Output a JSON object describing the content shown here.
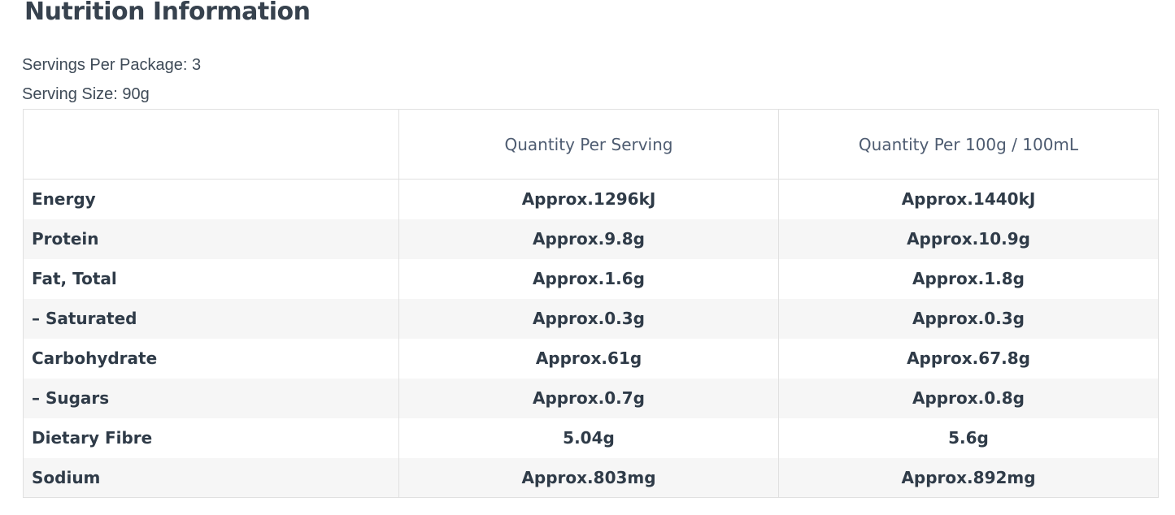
{
  "page": {
    "title": "Nutrition Information",
    "servings_per_package": "Servings Per Package: 3",
    "serving_size": "Serving Size: 90g"
  },
  "table": {
    "columns": [
      "",
      "Quantity Per Serving",
      "Quantity Per 100g / 100mL"
    ],
    "rows": [
      {
        "label": "Energy",
        "per_serving": "Approx.1296kJ",
        "per_100g": "Approx.1440kJ"
      },
      {
        "label": "Protein",
        "per_serving": "Approx.9.8g",
        "per_100g": "Approx.10.9g"
      },
      {
        "label": "Fat, Total",
        "per_serving": "Approx.1.6g",
        "per_100g": "Approx.1.8g"
      },
      {
        "label": "– Saturated",
        "per_serving": "Approx.0.3g",
        "per_100g": "Approx.0.3g"
      },
      {
        "label": "Carbohydrate",
        "per_serving": "Approx.61g",
        "per_100g": "Approx.67.8g"
      },
      {
        "label": "– Sugars",
        "per_serving": "Approx.0.7g",
        "per_100g": "Approx.0.8g"
      },
      {
        "label": "Dietary Fibre",
        "per_serving": "5.04g",
        "per_100g": "5.6g"
      },
      {
        "label": "Sodium",
        "per_serving": "Approx.803mg",
        "per_100g": "Approx.892mg"
      }
    ],
    "colors": {
      "heading_text": "#37424e",
      "body_text": "#3e4a57",
      "header_text": "#4e5c71",
      "cell_text": "#2f3b48",
      "row_alt_background": "#f6f6f6",
      "border": "#e0e0e0"
    }
  }
}
